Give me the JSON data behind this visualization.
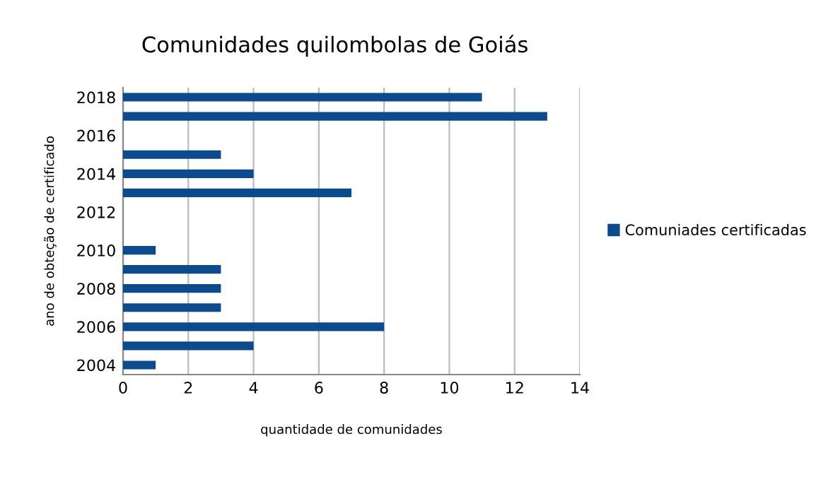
{
  "chart_data": {
    "type": "bar",
    "orientation": "horizontal",
    "title": "Comunidades quilombolas de Goiás",
    "xlabel": "quantidade de comunidades",
    "ylabel": "ano de obteção de certificado",
    "categories": [
      "2018",
      null,
      "2016",
      null,
      "2014",
      null,
      "2012",
      null,
      "2010",
      null,
      "2008",
      null,
      "2006",
      null,
      "2004"
    ],
    "series": [
      {
        "name": "Comuniades certificadas",
        "color": "#0b4a8c",
        "values": [
          11,
          13,
          null,
          3,
          4,
          7,
          null,
          null,
          1,
          3,
          3,
          3,
          8,
          4,
          1
        ]
      }
    ],
    "xlim": [
      0,
      14
    ],
    "xticks": [
      0,
      2,
      4,
      6,
      8,
      10,
      12,
      14
    ],
    "grid": "x",
    "legend": "right"
  }
}
